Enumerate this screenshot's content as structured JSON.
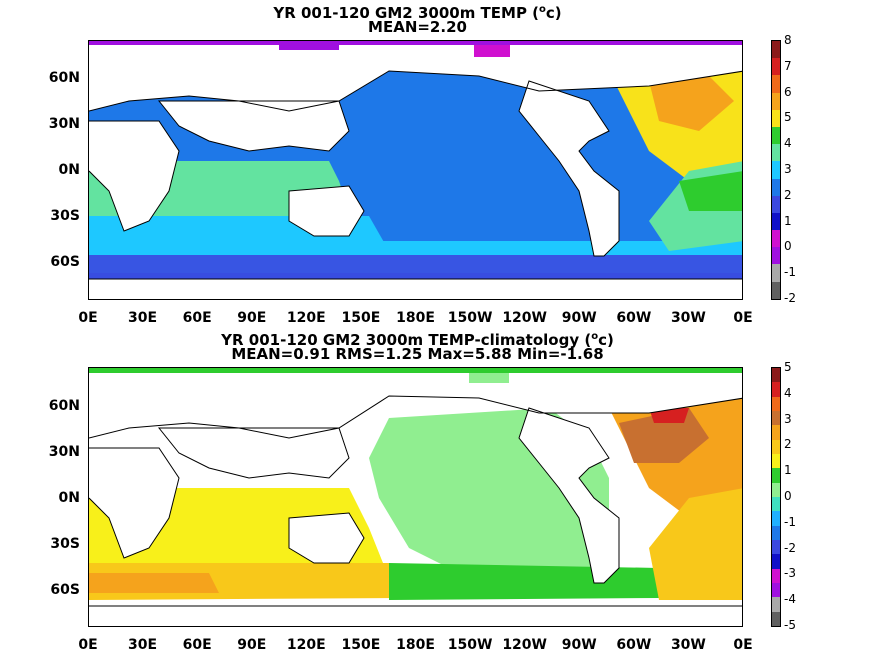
{
  "panels": [
    {
      "title_line1": "YR 001-120 GM2 3000m TEMP (",
      "title_sup": "o",
      "title_unit_end": "c)",
      "title_line2": "MEAN=2.20",
      "colorbar_ticks": [
        "8",
        "7",
        "6",
        "5",
        "4",
        "3",
        "2",
        "1",
        "0",
        "-1",
        "-2"
      ],
      "colorbar_colors": [
        "#8b1a1a",
        "#d62020",
        "#f06a1a",
        "#f5a31c",
        "#f8e21a",
        "#2ecc2e",
        "#63e3a0",
        "#1ec8ff",
        "#1e78e8",
        "#3b48e0",
        "#1010c8",
        "#d010d0",
        "#a010e0",
        "#a9a9a9",
        "#606060"
      ]
    },
    {
      "title_line1": "YR 001-120 GM2 3000m TEMP-climatology (",
      "title_sup": "o",
      "title_unit_end": "c)",
      "title_line2": "MEAN=0.91   RMS=1.25   Max=5.88   Min=-1.68",
      "colorbar_ticks": [
        "5",
        "4",
        "3",
        "2",
        "1",
        "0",
        "-1",
        "-2",
        "-3",
        "-4",
        "-5"
      ],
      "colorbar_colors": [
        "#8b1a1a",
        "#d62020",
        "#f06a1a",
        "#c87030",
        "#f5a31c",
        "#f8c81a",
        "#f8f01a",
        "#2ecc2e",
        "#90ee90",
        "#3fe0c0",
        "#20b0ff",
        "#1e78e8",
        "#3b48e0",
        "#1010c8",
        "#d010d0",
        "#a010e0",
        "#a9a9a9",
        "#606060"
      ]
    }
  ],
  "lat_labels": [
    "60N",
    "30N",
    "0N",
    "30S",
    "60S"
  ],
  "lon_labels": [
    "0E",
    "30E",
    "60E",
    "90E",
    "120E",
    "150E",
    "180E",
    "150W",
    "120W",
    "90W",
    "60W",
    "30W",
    "0E"
  ]
}
